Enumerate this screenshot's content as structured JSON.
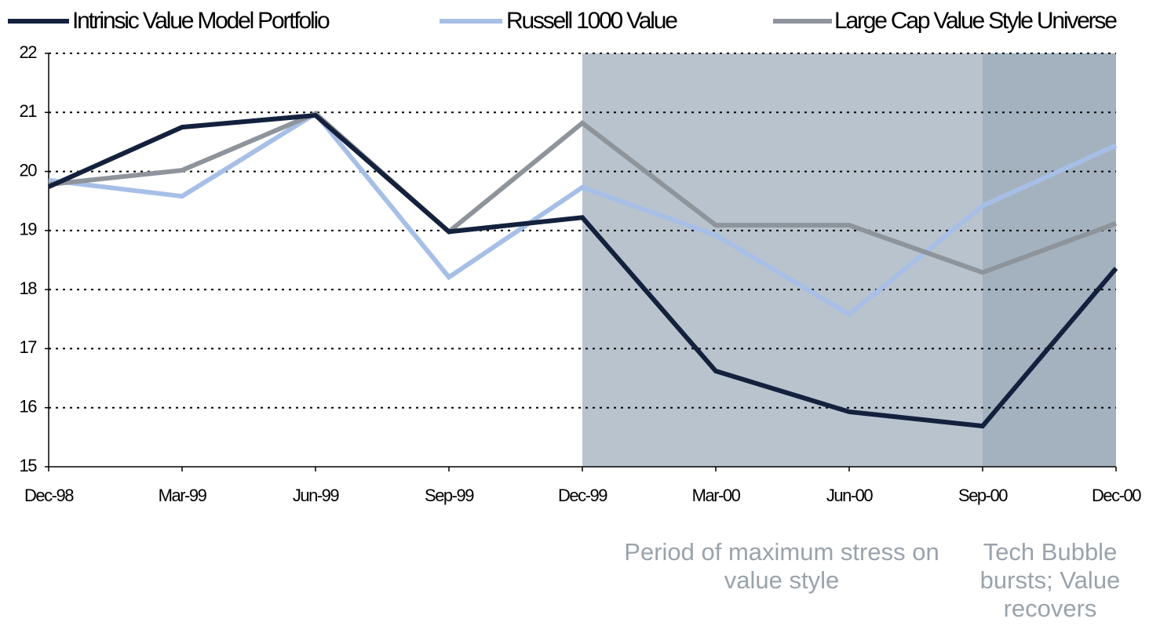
{
  "chart_data": {
    "type": "line",
    "categories": [
      "Dec-98",
      "Mar-99",
      "Jun-99",
      "Sep-99",
      "Dec-99",
      "Mar-00",
      "Jun-00",
      "Sep-00",
      "Dec-00"
    ],
    "series": [
      {
        "name": "Intrinsic Value Model Portfolio",
        "color": "#14213d",
        "values": [
          19.74,
          20.75,
          20.95,
          18.98,
          19.22,
          16.62,
          15.93,
          15.69,
          18.36
        ]
      },
      {
        "name": "Russell 1000 Value",
        "color": "#a7bfe6",
        "values": [
          19.85,
          19.58,
          20.98,
          18.21,
          19.73,
          18.92,
          17.58,
          19.42,
          20.44
        ]
      },
      {
        "name": "Large Cap Value Style Universe",
        "color": "#8e949b",
        "values": [
          19.78,
          20.02,
          20.98,
          18.98,
          20.82,
          19.09,
          19.09,
          18.29,
          19.12
        ]
      }
    ],
    "ylim": [
      15,
      22
    ],
    "yticks": [
      15,
      16,
      17,
      18,
      19,
      20,
      21,
      22
    ],
    "grid": true,
    "legend": "top",
    "shaded_regions": [
      {
        "start": "Dec-99",
        "end": "Sep-00",
        "color": "#b8c3cd",
        "label": "Period of maximum stress on value style"
      },
      {
        "start": "Sep-00",
        "end": "Dec-00",
        "color": "#a4b2bf",
        "label": "Tech Bubble bursts; Value recovers"
      }
    ]
  }
}
